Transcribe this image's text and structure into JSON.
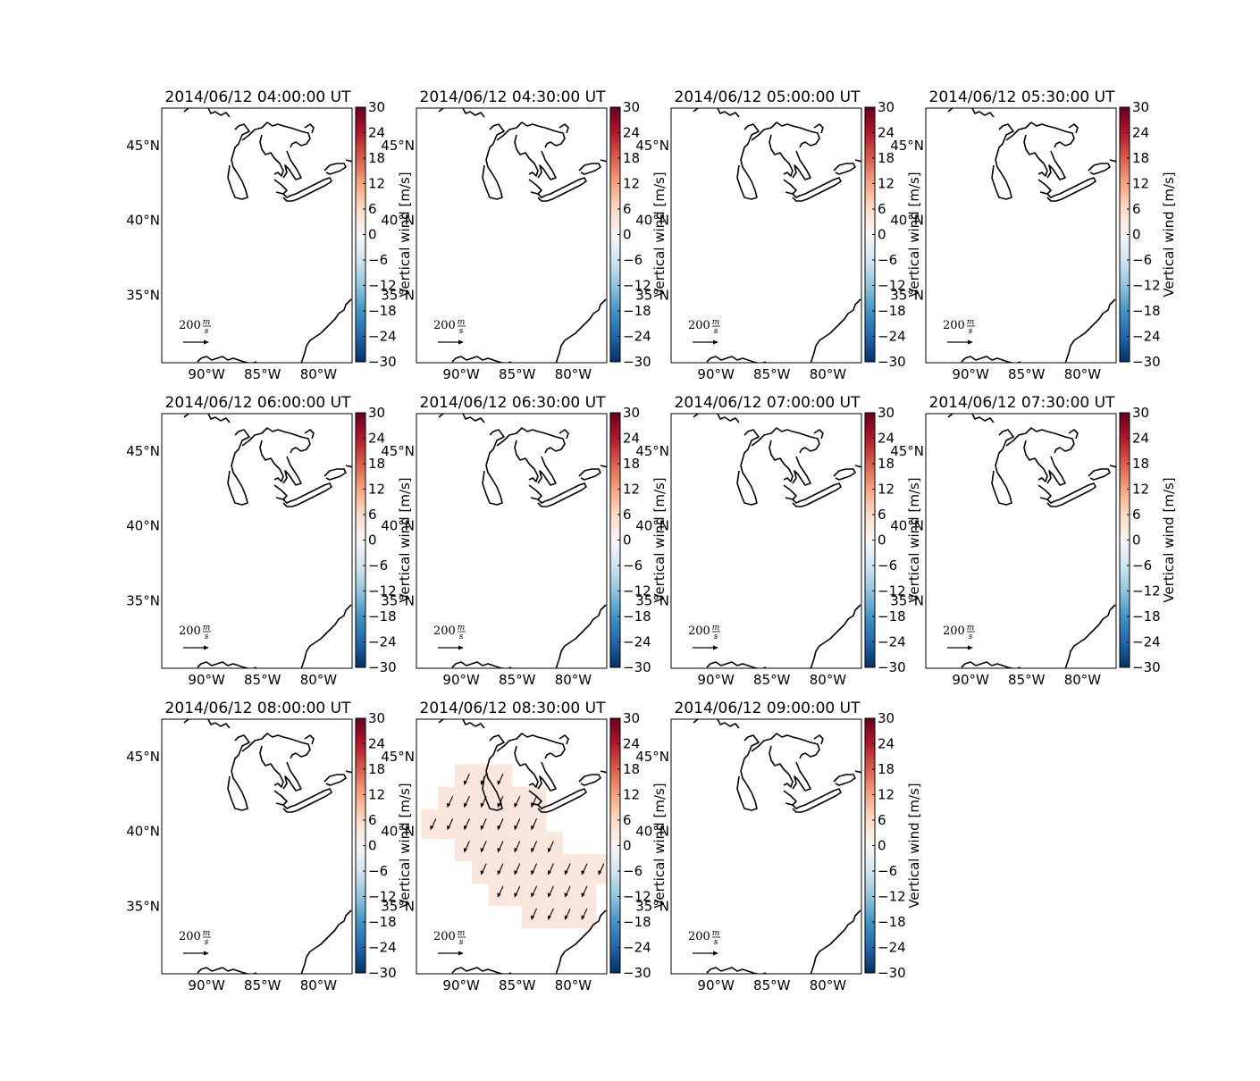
{
  "figure": {
    "colorbar": {
      "label": "Vertical wind [m/s]",
      "ticks": [
        "30",
        "24",
        "18",
        "12",
        "6",
        "0",
        "−6",
        "−12",
        "−18",
        "−24",
        "−30"
      ],
      "vmin": -30,
      "vmax": 30,
      "colormap": [
        "#67001f",
        "#b2182b",
        "#d6604d",
        "#f4a582",
        "#fddbc7",
        "#f7f7f7",
        "#d1e5f0",
        "#92c5de",
        "#4393c3",
        "#2166ac",
        "#053061"
      ]
    },
    "map": {
      "lon_labels": [
        "90°W",
        "85°W",
        "80°W"
      ],
      "lat_labels": [
        "45°N",
        "40°N",
        "35°N"
      ],
      "lon_ticks": [
        -90,
        -85,
        -80
      ],
      "lat_ticks": [
        45,
        40,
        35
      ],
      "lon_range": [
        -94,
        -77
      ],
      "lat_range": [
        30.5,
        47.5
      ]
    },
    "quiver_key": {
      "value": "200",
      "unit_numerator": "m",
      "unit_denominator": "s"
    },
    "panels": [
      {
        "title": "2014/06/12 04:00:00 UT",
        "has_data": false
      },
      {
        "title": "2014/06/12 04:30:00 UT",
        "has_data": false
      },
      {
        "title": "2014/06/12 05:00:00 UT",
        "has_data": false
      },
      {
        "title": "2014/06/12 05:30:00 UT",
        "has_data": false
      },
      {
        "title": "2014/06/12 06:00:00 UT",
        "has_data": false
      },
      {
        "title": "2014/06/12 06:30:00 UT",
        "has_data": false
      },
      {
        "title": "2014/06/12 07:00:00 UT",
        "has_data": false
      },
      {
        "title": "2014/06/12 07:30:00 UT",
        "has_data": false
      },
      {
        "title": "2014/06/12 08:00:00 UT",
        "has_data": false
      },
      {
        "title": "2014/06/12 08:30:00 UT",
        "has_data": true,
        "vertical_wind_value": 3,
        "wind_field_cells": [
          {
            "lon": -89.5,
            "lat": 43.5
          },
          {
            "lon": -88.0,
            "lat": 43.5
          },
          {
            "lon": -86.5,
            "lat": 43.5
          },
          {
            "lon": -91.0,
            "lat": 42.0
          },
          {
            "lon": -89.5,
            "lat": 42.0
          },
          {
            "lon": -88.0,
            "lat": 42.0
          },
          {
            "lon": -86.5,
            "lat": 42.0
          },
          {
            "lon": -85.0,
            "lat": 42.0
          },
          {
            "lon": -83.5,
            "lat": 42.0
          },
          {
            "lon": -92.5,
            "lat": 40.5
          },
          {
            "lon": -91.0,
            "lat": 40.5
          },
          {
            "lon": -89.5,
            "lat": 40.5
          },
          {
            "lon": -88.0,
            "lat": 40.5
          },
          {
            "lon": -86.5,
            "lat": 40.5
          },
          {
            "lon": -85.0,
            "lat": 40.5
          },
          {
            "lon": -83.5,
            "lat": 40.5
          },
          {
            "lon": -89.5,
            "lat": 39.0
          },
          {
            "lon": -88.0,
            "lat": 39.0
          },
          {
            "lon": -86.5,
            "lat": 39.0
          },
          {
            "lon": -85.0,
            "lat": 39.0
          },
          {
            "lon": -83.5,
            "lat": 39.0
          },
          {
            "lon": -82.0,
            "lat": 39.0
          },
          {
            "lon": -88.0,
            "lat": 37.5
          },
          {
            "lon": -86.5,
            "lat": 37.5
          },
          {
            "lon": -85.0,
            "lat": 37.5
          },
          {
            "lon": -83.5,
            "lat": 37.5
          },
          {
            "lon": -82.0,
            "lat": 37.5
          },
          {
            "lon": -80.5,
            "lat": 37.5
          },
          {
            "lon": -79.0,
            "lat": 37.5
          },
          {
            "lon": -77.5,
            "lat": 37.5
          },
          {
            "lon": -86.5,
            "lat": 36.0
          },
          {
            "lon": -85.0,
            "lat": 36.0
          },
          {
            "lon": -83.5,
            "lat": 36.0
          },
          {
            "lon": -82.0,
            "lat": 36.0
          },
          {
            "lon": -80.5,
            "lat": 36.0
          },
          {
            "lon": -79.0,
            "lat": 36.0
          },
          {
            "lon": -83.5,
            "lat": 34.5
          },
          {
            "lon": -82.0,
            "lat": 34.5
          },
          {
            "lon": -80.5,
            "lat": 34.5
          },
          {
            "lon": -79.0,
            "lat": 34.5
          }
        ],
        "wind_vector_direction": "south-southwest"
      },
      {
        "title": "2014/06/12 09:00:00 UT",
        "has_data": false
      }
    ]
  }
}
